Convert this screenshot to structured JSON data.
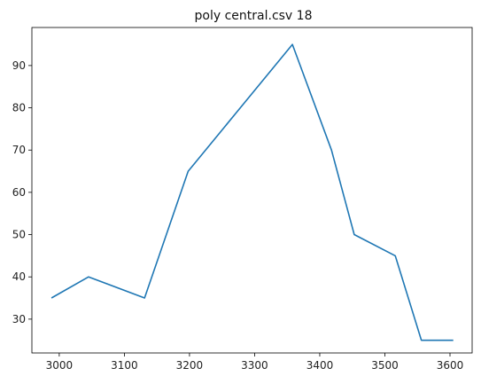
{
  "chart_data": {
    "type": "line",
    "title": "poly central.csv 18",
    "xlabel": "",
    "ylabel": "",
    "xlim": [
      2958,
      3634
    ],
    "ylim": [
      22,
      99
    ],
    "grid": false,
    "legend": "none",
    "x_ticks": [
      3000,
      3100,
      3200,
      3300,
      3400,
      3500,
      3600
    ],
    "y_ticks": [
      30,
      40,
      50,
      60,
      70,
      80,
      90
    ],
    "series": [
      {
        "color": "#1f77b4",
        "x": [
          2988,
          3045,
          3131,
          3198,
          3358,
          3418,
          3453,
          3516,
          3556,
          3605
        ],
        "y": [
          35,
          40,
          35,
          65,
          95,
          70,
          50,
          45,
          25,
          25
        ]
      }
    ]
  }
}
